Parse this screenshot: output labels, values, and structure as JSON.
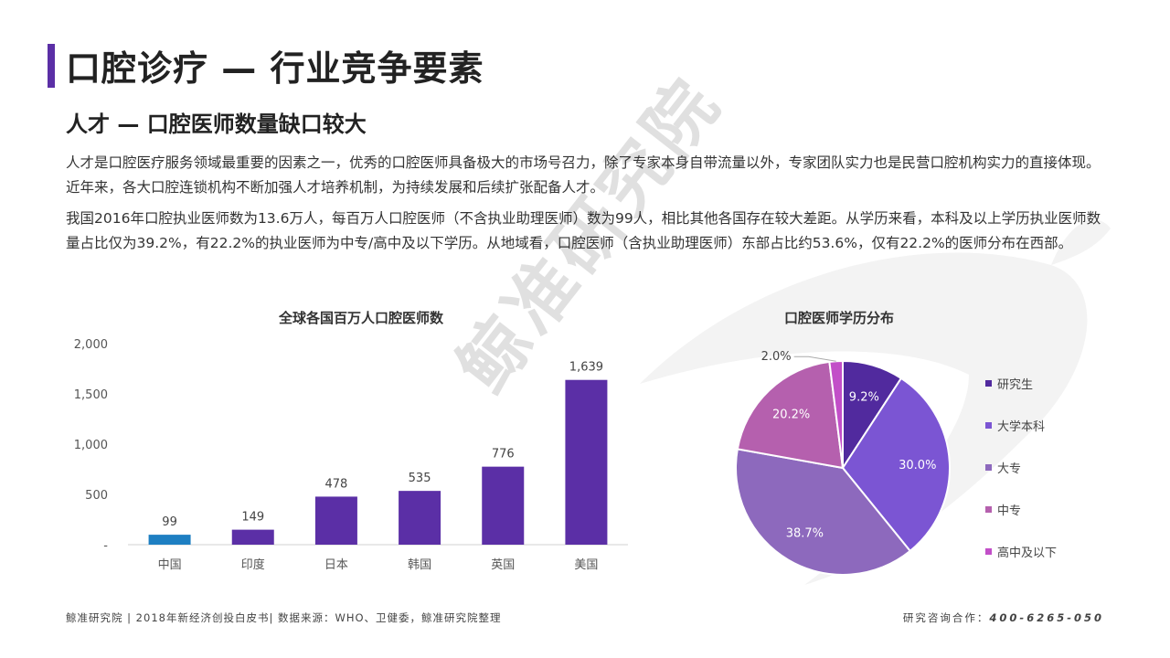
{
  "header": {
    "title": "口腔诊疗 — 行业竞争要素",
    "subtitle": "人才 — 口腔医师数量缺口较大"
  },
  "body": {
    "paragraph1": "人才是口腔医疗服务领域最重要的因素之一，优秀的口腔医师具备极大的市场号召力，除了专家本身自带流量以外，专家团队实力也是民营口腔机构实力的直接体现。近年来，各大口腔连锁机构不断加强人才培养机制，为持续发展和后续扩张配备人才。",
    "paragraph2": "我国2016年口腔执业医师数为13.6万人，每百万人口腔医师（不含执业助理医师）数为99人，相比其他各国存在较大差距。从学历来看，本科及以上学历执业医师数量占比仅为39.2%，有22.2%的执业医师为中专/高中及以下学历。从地域看，口腔医师（含执业助理医师）东部占比约53.6%，仅有22.2%的医师分布在西部。"
  },
  "watermark": "鲸准研究院",
  "chart_data": [
    {
      "type": "bar",
      "title": "全球各国百万人口腔医师数",
      "categories": [
        "中国",
        "印度",
        "日本",
        "韩国",
        "英国",
        "美国"
      ],
      "values": [
        99,
        149,
        478,
        535,
        776,
        1639
      ],
      "value_labels": [
        "99",
        "149",
        "478",
        "535",
        "776",
        "1,639"
      ],
      "ylim": [
        0,
        2000
      ],
      "yticks": [
        0,
        500,
        1000,
        1500,
        2000
      ],
      "ytick_labels": [
        "-",
        "500",
        "1,000",
        "1,500",
        "2,000"
      ],
      "colors": [
        "#1e7fc2",
        "#5b2fa6",
        "#5b2fa6",
        "#5b2fa6",
        "#5b2fa6",
        "#5b2fa6"
      ],
      "grid": false
    },
    {
      "type": "pie",
      "title": "口腔医师学历分布",
      "labels": [
        "研究生",
        "大学本科",
        "大专",
        "中专",
        "高中及以下"
      ],
      "values": [
        9.2,
        30.0,
        38.7,
        20.2,
        2.0
      ],
      "value_labels": [
        "9.2%",
        "30.0%",
        "38.7%",
        "20.2%",
        "2.0%"
      ],
      "colors": [
        "#512a9e",
        "#7b55d3",
        "#8d69bd",
        "#b560ae",
        "#c24fc8"
      ],
      "legend_position": "right"
    }
  ],
  "footer": {
    "source": "鲸准研究院 | 2018年新经济创投白皮书| 数据来源：WHO、卫健委，鲸准研究院整理",
    "contact_label": "研究咨询合作：",
    "contact_phone": "400-6265-050"
  }
}
